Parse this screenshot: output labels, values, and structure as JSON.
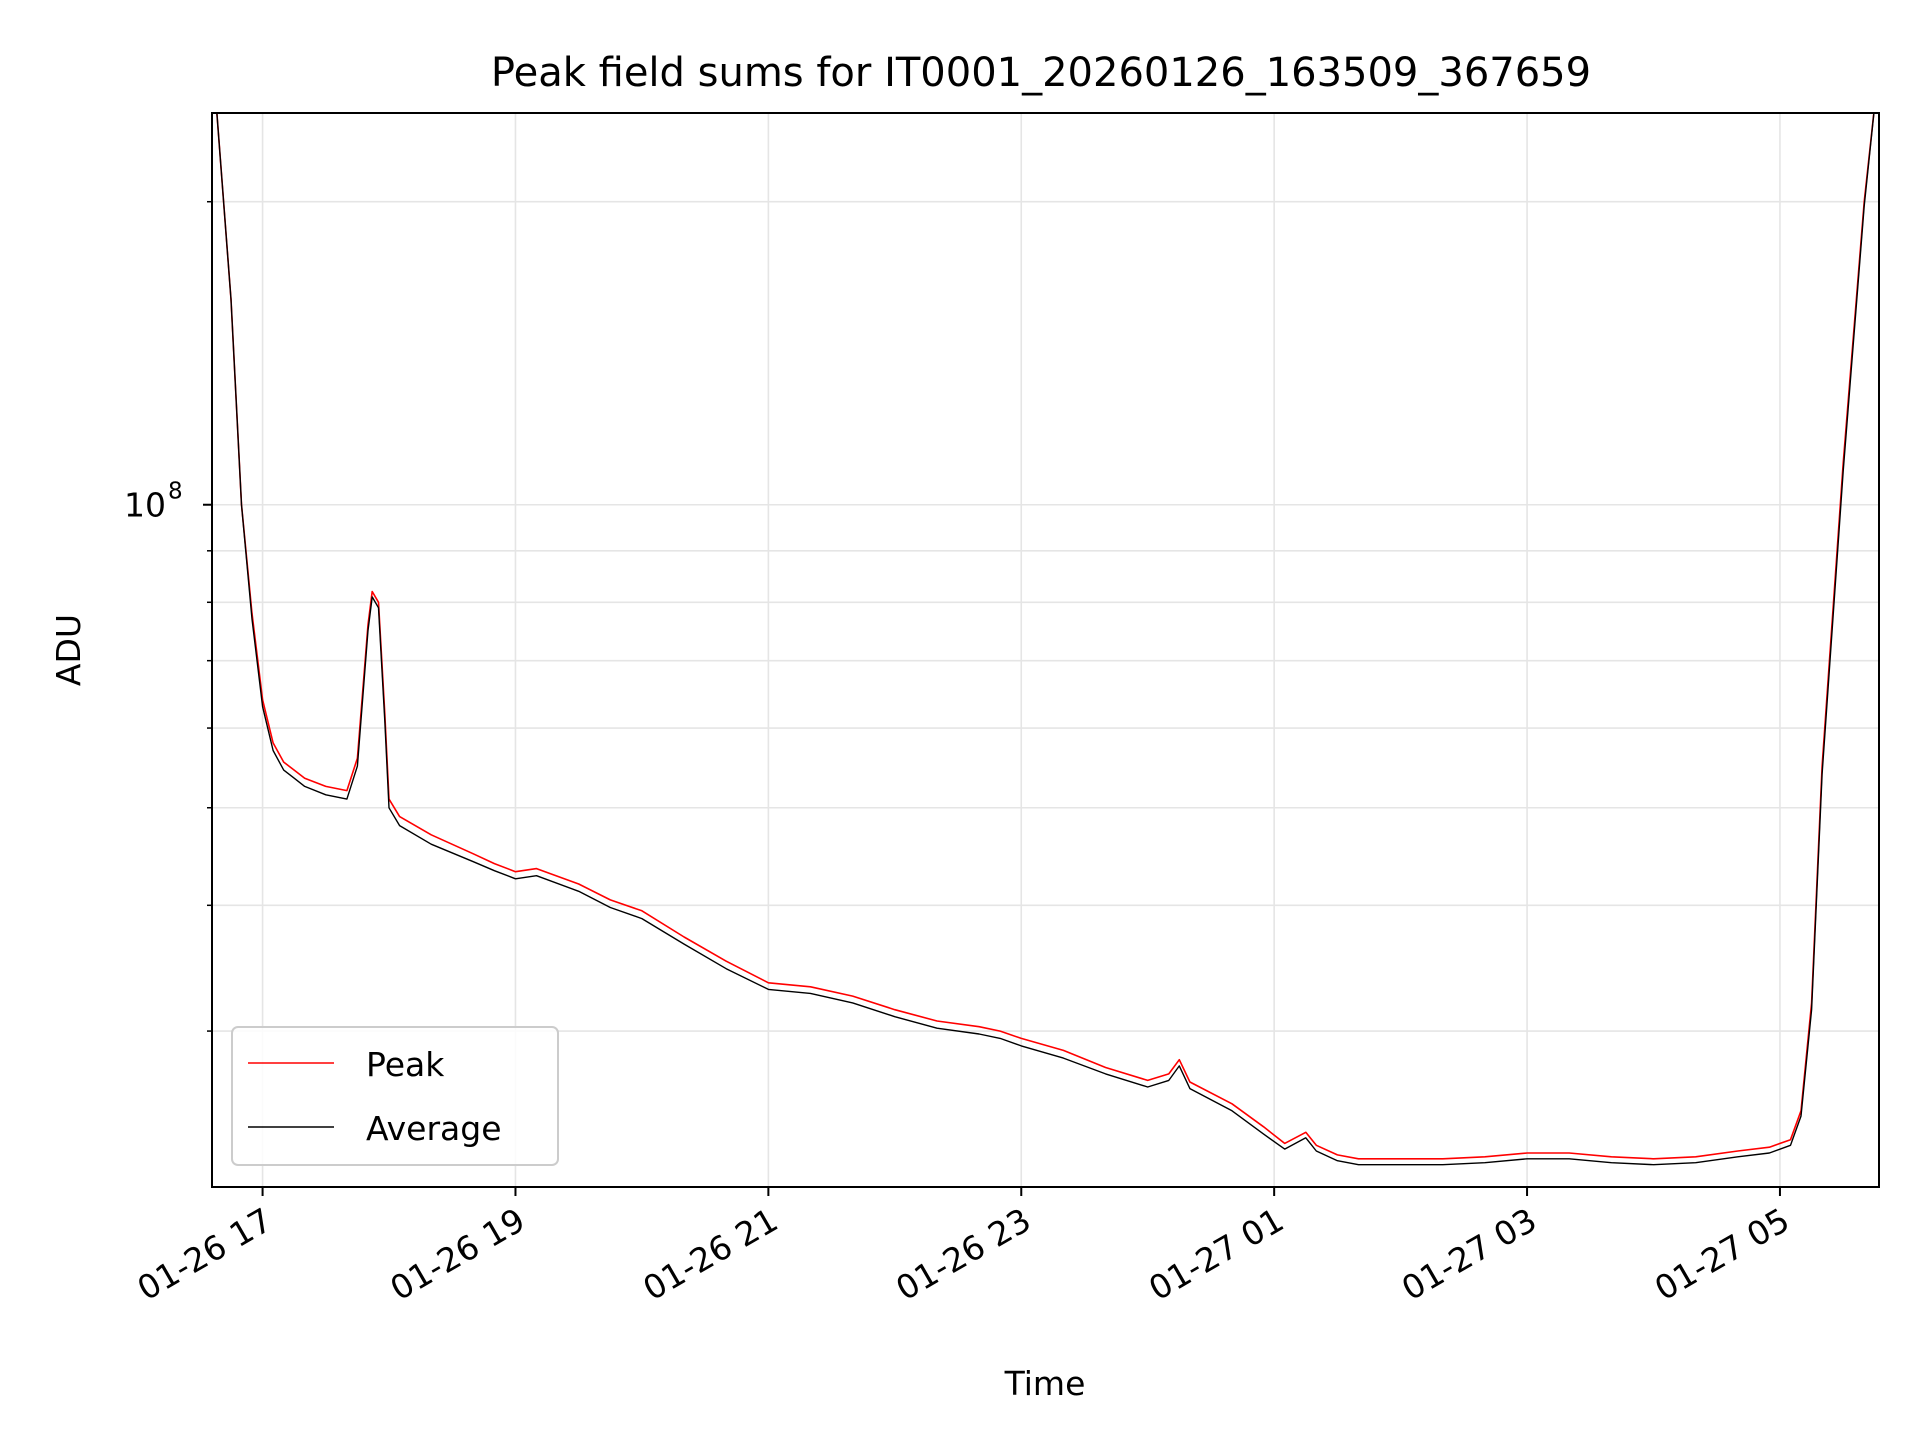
{
  "chart_data": {
    "type": "line",
    "title": "Peak field sums for IT0001_20260126_163509_367659",
    "xlabel": "Time",
    "ylabel": "ADU",
    "y_scale": "log",
    "ylim": [
      21000000,
      245000000
    ],
    "xlim": [
      "2026-01-26 16:36",
      "2026-01-27 05:47"
    ],
    "x_ticks": [
      {
        "t": "2026-01-26 17:00",
        "label": "01-26 17"
      },
      {
        "t": "2026-01-26 19:00",
        "label": "01-26 19"
      },
      {
        "t": "2026-01-26 21:00",
        "label": "01-26 21"
      },
      {
        "t": "2026-01-26 23:00",
        "label": "01-26 23"
      },
      {
        "t": "2026-01-27 01:00",
        "label": "01-27 01"
      },
      {
        "t": "2026-01-27 03:00",
        "label": "01-27 03"
      },
      {
        "t": "2026-01-27 05:00",
        "label": "01-27 05"
      }
    ],
    "y_ticks": [
      {
        "value": 100000000,
        "label": "10^8",
        "base": "10",
        "exp": "8"
      }
    ],
    "grid": true,
    "legend_position": "lower-left",
    "series": [
      {
        "name": "Peak",
        "color": "#ff0000",
        "x": [
          "2026-01-26 16:38",
          "2026-01-26 16:45",
          "2026-01-26 16:50",
          "2026-01-26 16:55",
          "2026-01-26 17:00",
          "2026-01-26 17:05",
          "2026-01-26 17:10",
          "2026-01-26 17:15",
          "2026-01-26 17:20",
          "2026-01-26 17:30",
          "2026-01-26 17:40",
          "2026-01-26 17:45",
          "2026-01-26 17:50",
          "2026-01-26 17:52",
          "2026-01-26 17:55",
          "2026-01-26 17:58",
          "2026-01-26 18:00",
          "2026-01-26 18:05",
          "2026-01-26 18:20",
          "2026-01-26 18:40",
          "2026-01-26 18:50",
          "2026-01-26 19:00",
          "2026-01-26 19:10",
          "2026-01-26 19:30",
          "2026-01-26 19:45",
          "2026-01-26 20:00",
          "2026-01-26 20:20",
          "2026-01-26 20:40",
          "2026-01-26 21:00",
          "2026-01-26 21:20",
          "2026-01-26 21:40",
          "2026-01-26 22:00",
          "2026-01-26 22:20",
          "2026-01-26 22:40",
          "2026-01-26 22:50",
          "2026-01-26 23:00",
          "2026-01-26 23:20",
          "2026-01-26 23:40",
          "2026-01-27 00:00",
          "2026-01-27 00:10",
          "2026-01-27 00:15",
          "2026-01-27 00:20",
          "2026-01-27 00:40",
          "2026-01-27 00:55",
          "2026-01-27 01:05",
          "2026-01-27 01:15",
          "2026-01-27 01:20",
          "2026-01-27 01:30",
          "2026-01-27 01:40",
          "2026-01-27 02:00",
          "2026-01-27 02:20",
          "2026-01-27 02:40",
          "2026-01-27 03:00",
          "2026-01-27 03:20",
          "2026-01-27 03:40",
          "2026-01-27 04:00",
          "2026-01-27 04:20",
          "2026-01-27 04:40",
          "2026-01-27 04:55",
          "2026-01-27 05:05",
          "2026-01-27 05:10",
          "2026-01-27 05:15",
          "2026-01-27 05:20",
          "2026-01-27 05:30",
          "2026-01-27 05:40",
          "2026-01-27 05:45"
        ],
        "y": [
          250000000,
          160000000,
          100000000,
          78000000,
          64000000,
          58000000,
          55500000,
          54500000,
          53500000,
          52500000,
          52000000,
          56000000,
          76000000,
          82000000,
          80000000,
          62000000,
          51000000,
          49000000,
          47000000,
          45000000,
          44000000,
          43200000,
          43500000,
          42000000,
          40500000,
          39500000,
          37200000,
          35200000,
          33500000,
          33200000,
          32500000,
          31500000,
          30700000,
          30300000,
          30000000,
          29500000,
          28700000,
          27600000,
          26800000,
          27200000,
          28100000,
          26700000,
          25400000,
          24100000,
          23200000,
          23800000,
          23100000,
          22600000,
          22400000,
          22400000,
          22400000,
          22500000,
          22700000,
          22700000,
          22500000,
          22400000,
          22500000,
          22800000,
          23000000,
          23400000,
          25000000,
          32000000,
          55000000,
          110000000,
          200000000,
          250000000
        ]
      },
      {
        "name": "Average",
        "color": "#000000",
        "x": [
          "2026-01-26 16:38",
          "2026-01-26 16:45",
          "2026-01-26 16:50",
          "2026-01-26 16:55",
          "2026-01-26 17:00",
          "2026-01-26 17:05",
          "2026-01-26 17:10",
          "2026-01-26 17:15",
          "2026-01-26 17:20",
          "2026-01-26 17:30",
          "2026-01-26 17:40",
          "2026-01-26 17:45",
          "2026-01-26 17:50",
          "2026-01-26 17:52",
          "2026-01-26 17:55",
          "2026-01-26 17:58",
          "2026-01-26 18:00",
          "2026-01-26 18:05",
          "2026-01-26 18:20",
          "2026-01-26 18:40",
          "2026-01-26 18:50",
          "2026-01-26 19:00",
          "2026-01-26 19:10",
          "2026-01-26 19:30",
          "2026-01-26 19:45",
          "2026-01-26 20:00",
          "2026-01-26 20:20",
          "2026-01-26 20:40",
          "2026-01-26 21:00",
          "2026-01-26 21:20",
          "2026-01-26 21:40",
          "2026-01-26 22:00",
          "2026-01-26 22:20",
          "2026-01-26 22:40",
          "2026-01-26 22:50",
          "2026-01-26 23:00",
          "2026-01-26 23:20",
          "2026-01-26 23:40",
          "2026-01-27 00:00",
          "2026-01-27 00:10",
          "2026-01-27 00:15",
          "2026-01-27 00:20",
          "2026-01-27 00:40",
          "2026-01-27 00:55",
          "2026-01-27 01:05",
          "2026-01-27 01:15",
          "2026-01-27 01:20",
          "2026-01-27 01:30",
          "2026-01-27 01:40",
          "2026-01-27 02:00",
          "2026-01-27 02:20",
          "2026-01-27 02:40",
          "2026-01-27 03:00",
          "2026-01-27 03:20",
          "2026-01-27 03:40",
          "2026-01-27 04:00",
          "2026-01-27 04:20",
          "2026-01-27 04:40",
          "2026-01-27 04:55",
          "2026-01-27 05:05",
          "2026-01-27 05:10",
          "2026-01-27 05:15",
          "2026-01-27 05:20",
          "2026-01-27 05:30",
          "2026-01-27 05:40",
          "2026-01-27 05:45"
        ],
        "y": [
          250000000,
          160000000,
          100000000,
          77000000,
          63000000,
          57000000,
          54500000,
          53500000,
          52500000,
          51500000,
          51000000,
          55000000,
          75000000,
          81000000,
          79000000,
          61000000,
          50000000,
          48000000,
          46000000,
          44200000,
          43300000,
          42500000,
          42800000,
          41300000,
          39800000,
          38800000,
          36600000,
          34600000,
          33000000,
          32700000,
          32000000,
          31000000,
          30200000,
          29800000,
          29500000,
          29000000,
          28200000,
          27200000,
          26400000,
          26800000,
          27700000,
          26300000,
          25000000,
          23700000,
          22900000,
          23500000,
          22800000,
          22300000,
          22100000,
          22100000,
          22100000,
          22200000,
          22400000,
          22400000,
          22200000,
          22100000,
          22200000,
          22500000,
          22700000,
          23100000,
          24700000,
          31500000,
          54000000,
          108000000,
          198000000,
          250000000
        ]
      }
    ]
  }
}
